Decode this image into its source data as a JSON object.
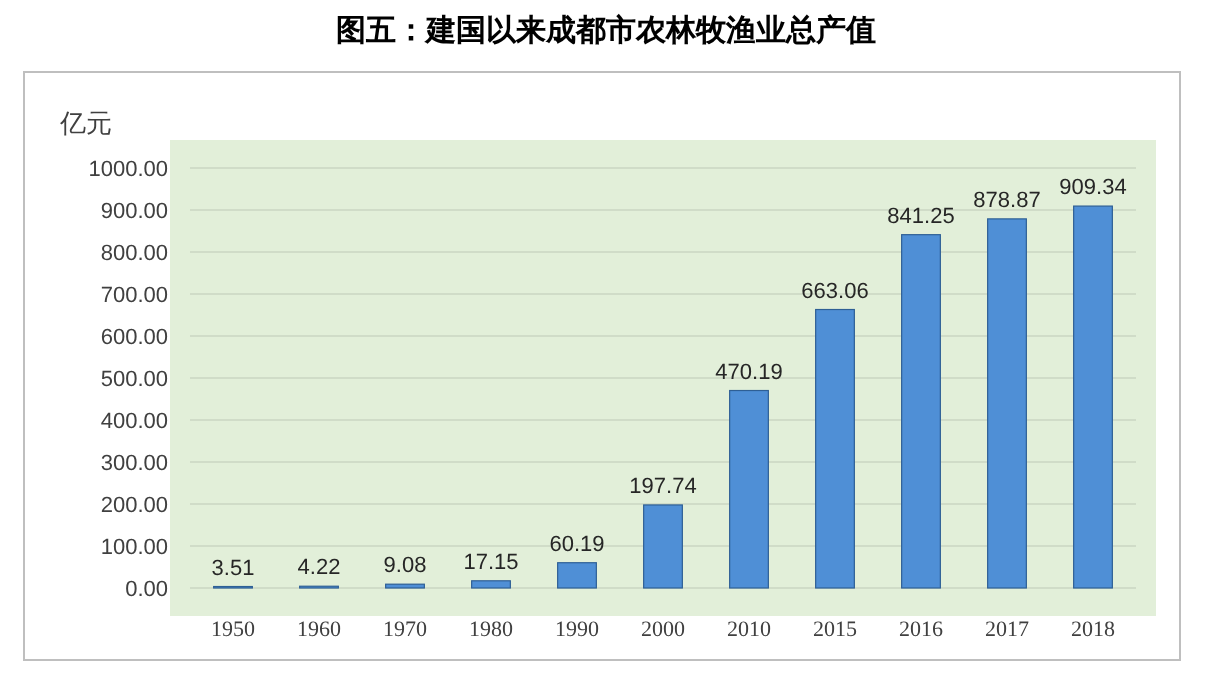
{
  "chart_data": {
    "type": "bar",
    "title": "图五：建国以来成都市农林牧渔业总产值",
    "ylabel": "亿元",
    "categories": [
      "1950",
      "1960",
      "1970",
      "1980",
      "1990",
      "2000",
      "2010",
      "2015",
      "2016",
      "2017",
      "2018"
    ],
    "values": [
      3.51,
      4.22,
      9.08,
      17.15,
      60.19,
      197.74,
      470.19,
      663.06,
      841.25,
      878.87,
      909.34
    ],
    "color": "#4f8fd6",
    "ylim": [
      0,
      1000
    ],
    "yticks": [
      {
        "value": 0,
        "label": "0.00"
      },
      {
        "value": 100,
        "label": "100.00"
      },
      {
        "value": 200,
        "label": "200.00"
      },
      {
        "value": 300,
        "label": "300.00"
      },
      {
        "value": 400,
        "label": "400.00"
      },
      {
        "value": 500,
        "label": "500.00"
      },
      {
        "value": 600,
        "label": "600.00"
      },
      {
        "value": 700,
        "label": "700.00"
      },
      {
        "value": 800,
        "label": "800.00"
      },
      {
        "value": 900,
        "label": "900.00"
      },
      {
        "value": 1000,
        "label": "1000.00"
      }
    ],
    "grid": "y",
    "data_labels": true
  }
}
